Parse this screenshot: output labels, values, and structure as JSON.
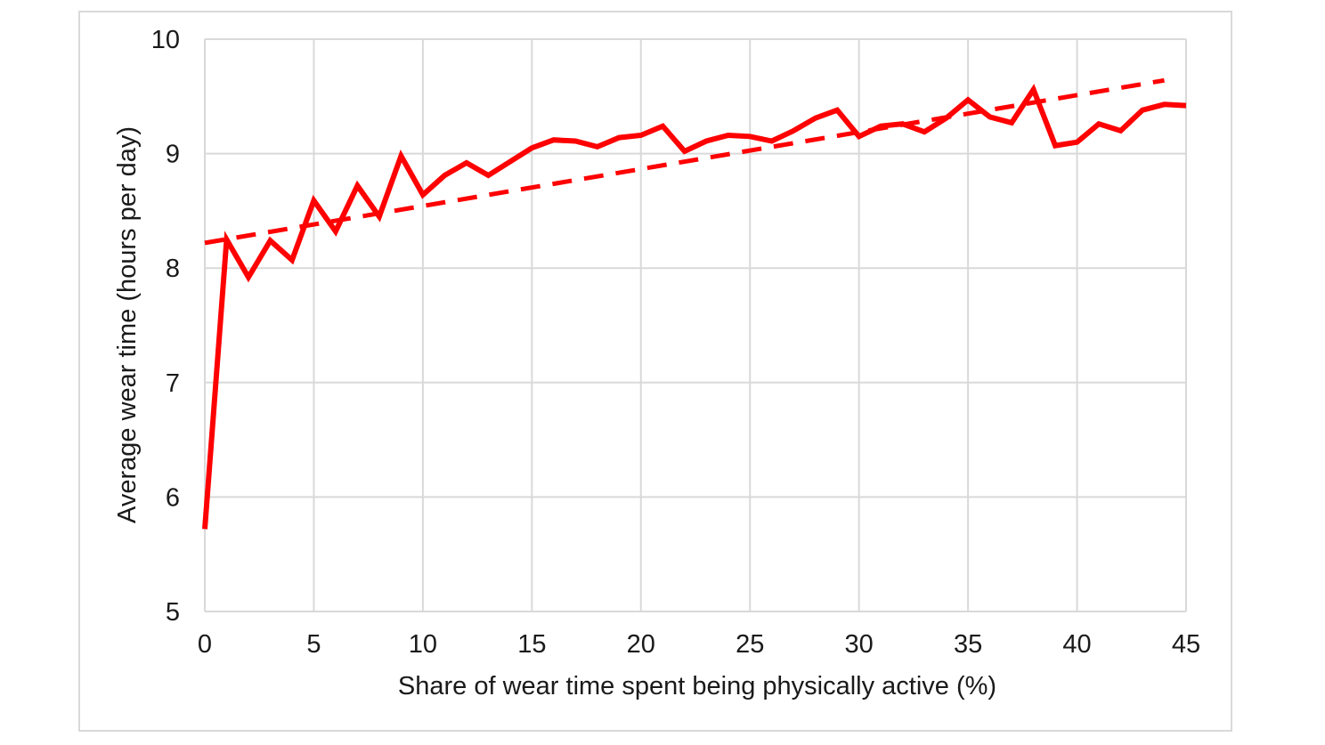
{
  "chart_data": {
    "type": "line",
    "title": "",
    "xlabel": "Share of wear time spent being physically active  (%)",
    "ylabel": "Average wear time (hours per day)",
    "xlim": [
      0,
      45
    ],
    "ylim": [
      5,
      10
    ],
    "x_ticks": [
      0,
      5,
      10,
      15,
      20,
      25,
      30,
      35,
      40,
      45
    ],
    "y_ticks": [
      5,
      6,
      7,
      8,
      9,
      10
    ],
    "grid": true,
    "legend": "none",
    "series": [
      {
        "style": "solid",
        "color": "#ff0000",
        "x": [
          0,
          1,
          2,
          3,
          4,
          5,
          6,
          7,
          8,
          9,
          10,
          11,
          12,
          13,
          14,
          15,
          16,
          17,
          18,
          19,
          20,
          21,
          22,
          23,
          24,
          25,
          26,
          27,
          28,
          29,
          30,
          31,
          32,
          33,
          34,
          35,
          36,
          37,
          38,
          39,
          40,
          41,
          42,
          43,
          44,
          45
        ],
        "y": [
          5.72,
          8.25,
          7.92,
          8.24,
          8.07,
          8.59,
          8.32,
          8.72,
          8.45,
          8.98,
          8.64,
          8.81,
          8.92,
          8.81,
          8.93,
          9.05,
          9.12,
          9.11,
          9.06,
          9.14,
          9.16,
          9.24,
          9.02,
          9.11,
          9.16,
          9.15,
          9.11,
          9.2,
          9.31,
          9.38,
          9.15,
          9.24,
          9.26,
          9.19,
          9.31,
          9.47,
          9.32,
          9.27,
          9.56,
          9.07,
          9.1,
          9.26,
          9.2,
          9.38,
          9.43,
          9.42
        ]
      },
      {
        "style": "dashed",
        "color": "#ff0000",
        "x": [
          0,
          44
        ],
        "y": [
          8.22,
          9.64
        ]
      }
    ]
  }
}
